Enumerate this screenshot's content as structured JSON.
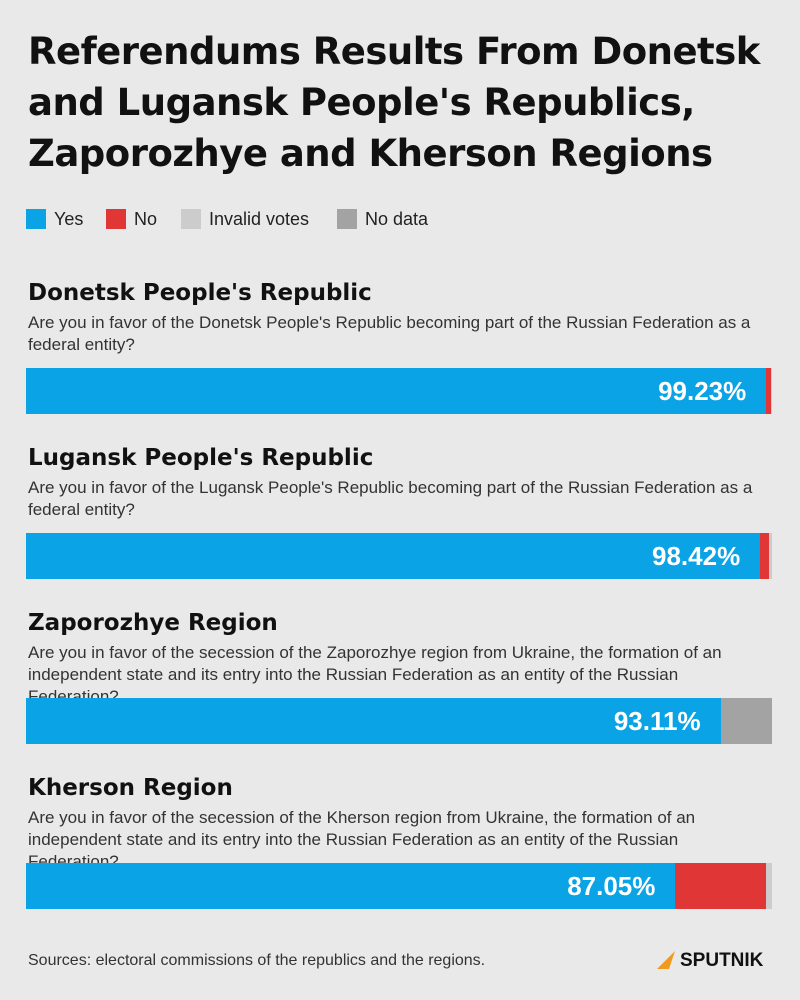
{
  "chart_data": {
    "type": "bar",
    "orientation": "horizontal",
    "stacked": true,
    "title": "Referendums Results From Donetsk and Lugansk People's Republics, Zaporozhye and Kherson Regions",
    "categories": [
      "Donetsk People's Republic",
      "Lugansk People's Republic",
      "Zaporozhye Region",
      "Kherson Region"
    ],
    "questions": [
      "Are you in favor of the Donetsk People's Republic becoming part of the Russian Federation as a federal entity?",
      "Are you in favor of the Lugansk People's Republic becoming part of the Russian Federation as a federal entity?",
      "Are you in favor of the secession of the Zaporozhye region from Ukraine, the formation of an independent state and its entry into the Russian Federation as an entity of the Russian Federation?",
      "Are you in favor of the secession of the Kherson region from Ukraine, the formation of an independent state and its entry into the Russian Federation as an entity of the Russian Federation?"
    ],
    "series": [
      {
        "name": "Yes",
        "color": "#0aa3e6",
        "values": [
          99.23,
          98.42,
          93.11,
          87.05
        ],
        "value_labels": [
          "99.23%",
          "98.42%",
          "93.11%",
          "87.05%"
        ]
      },
      {
        "name": "No",
        "color": "#e03636",
        "values": [
          0.6,
          1.2,
          null,
          12.1
        ]
      },
      {
        "name": "Invalid votes",
        "color": "#cccccc",
        "values": [
          0.17,
          0.38,
          null,
          0.85
        ]
      },
      {
        "name": "No data",
        "color": "#a3a3a3",
        "values": [
          null,
          null,
          6.89,
          null
        ]
      }
    ],
    "xlim": [
      0,
      100
    ],
    "source": "Sources: electoral commissions of the republics and the regions.",
    "brand": "SPUTNIK"
  }
}
